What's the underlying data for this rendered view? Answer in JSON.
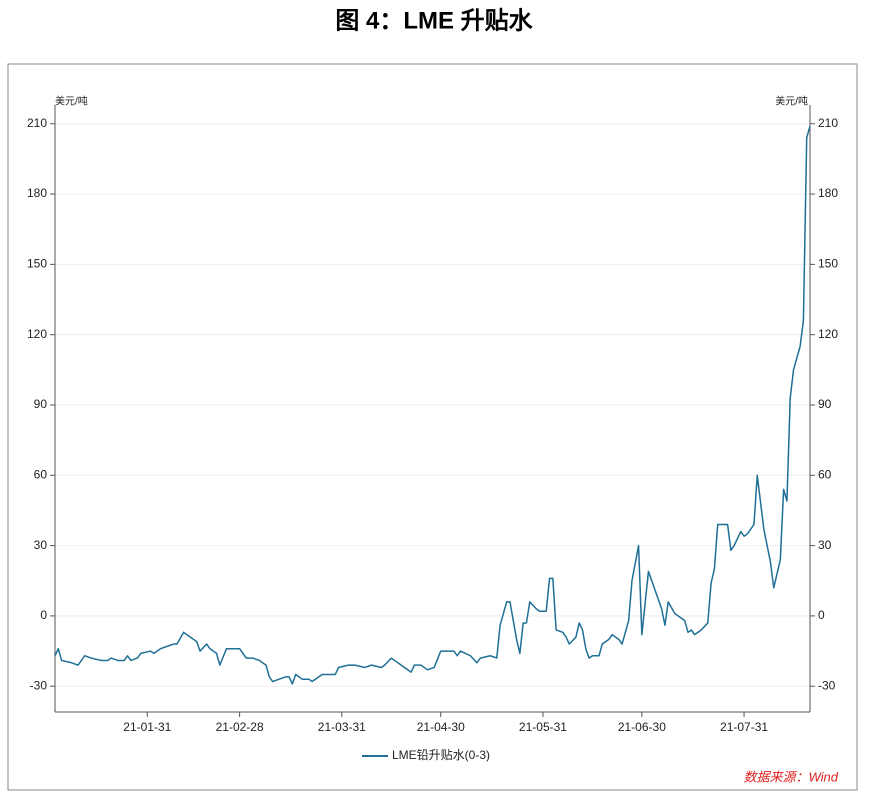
{
  "chart_data": {
    "type": "line",
    "title": "图 4：LME 升贴水",
    "ylabel": "美元/吨",
    "y2label": "美元/吨",
    "source": "数据来源：Wind",
    "x": [
      "21-01-03",
      "21-01-04",
      "21-01-05",
      "21-01-08",
      "21-01-10",
      "21-01-12",
      "21-01-14",
      "21-01-17",
      "21-01-19",
      "21-01-20",
      "21-01-22",
      "21-01-24",
      "21-01-25",
      "21-01-26",
      "21-01-28",
      "21-01-29",
      "21-02-01",
      "21-02-02",
      "21-02-04",
      "21-02-06",
      "21-02-08",
      "21-02-09",
      "21-02-11",
      "21-02-13",
      "21-02-15",
      "21-02-16",
      "21-02-18",
      "21-02-19",
      "21-02-21",
      "21-02-22",
      "21-02-24",
      "21-02-26",
      "21-02-28",
      "21-03-02",
      "21-03-04",
      "21-03-06",
      "21-03-08",
      "21-03-09",
      "21-03-10",
      "21-03-12",
      "21-03-14",
      "21-03-15",
      "21-03-16",
      "21-03-17",
      "21-03-19",
      "21-03-21",
      "21-03-22",
      "21-03-24",
      "21-03-25",
      "21-03-27",
      "21-03-29",
      "21-03-30",
      "21-04-02",
      "21-04-04",
      "21-04-07",
      "21-04-09",
      "21-04-12",
      "21-04-13",
      "21-04-15",
      "21-04-16",
      "21-04-18",
      "21-04-21",
      "21-04-22",
      "21-04-24",
      "21-04-26",
      "21-04-28",
      "21-04-30",
      "21-05-02",
      "21-05-04",
      "21-05-05",
      "21-05-06",
      "21-05-09",
      "21-05-11",
      "21-05-12",
      "21-05-15",
      "21-05-17",
      "21-05-18",
      "21-05-20",
      "21-05-21",
      "21-05-23",
      "21-05-24",
      "21-05-25",
      "21-05-26",
      "21-05-27",
      "21-05-29",
      "21-05-30",
      "21-06-01",
      "21-06-02",
      "21-06-03",
      "21-06-04",
      "21-06-06",
      "21-06-07",
      "21-06-08",
      "21-06-10",
      "21-06-11",
      "21-06-12",
      "21-06-13",
      "21-06-14",
      "21-06-15",
      "21-06-17",
      "21-06-18",
      "21-06-20",
      "21-06-21",
      "21-06-23",
      "21-06-24",
      "21-06-26",
      "21-06-27",
      "21-06-29",
      "21-06-30",
      "21-07-02",
      "21-07-04",
      "21-07-06",
      "21-07-07",
      "21-07-08",
      "21-07-10",
      "21-07-11",
      "21-07-13",
      "21-07-14",
      "21-07-15",
      "21-07-16",
      "21-07-18",
      "21-07-20",
      "21-07-21",
      "21-07-22",
      "21-07-23",
      "21-07-25",
      "21-07-26",
      "21-07-27",
      "21-07-28",
      "21-07-30",
      "21-07-31",
      "21-08-01",
      "21-08-02",
      "21-08-03",
      "21-08-04",
      "21-08-06",
      "21-08-08",
      "21-08-09",
      "21-08-11",
      "21-08-12",
      "21-08-13",
      "21-08-14",
      "21-08-15",
      "21-08-17",
      "21-08-18",
      "21-08-19",
      "21-08-20"
    ],
    "series": [
      {
        "name": "LME铅升贴水(0-3)",
        "color": "#1f6f96",
        "values": [
          -17,
          -14,
          -19,
          -20,
          -21,
          -17,
          -18,
          -19,
          -19,
          -18,
          -19,
          -19,
          -17,
          -19,
          -18,
          -16,
          -15,
          -16,
          -14,
          -13,
          -12,
          -12,
          -7,
          -9,
          -11,
          -15,
          -12,
          -14,
          -16,
          -21,
          -14,
          -14,
          -14,
          -18,
          -18,
          -19,
          -21,
          -26,
          -28,
          -27,
          -26,
          -26,
          -29,
          -25,
          -27,
          -27,
          -28,
          -26,
          -25,
          -25,
          -25,
          -22,
          -21,
          -21,
          -22,
          -21,
          -22,
          -21,
          -18,
          -19,
          -21,
          -24,
          -21,
          -21,
          -23,
          -22,
          -15,
          -15,
          -15,
          -17,
          -15,
          -17,
          -20,
          -18,
          -17,
          -18,
          -4,
          6,
          6,
          -10,
          -16,
          -3,
          -3,
          6,
          3,
          2,
          2,
          16,
          16,
          -6,
          -7,
          -9,
          -12,
          -9,
          -3,
          -6,
          -14,
          -18,
          -17,
          -17,
          -12,
          -10,
          -8,
          -10,
          -12,
          -2,
          15,
          30,
          -8,
          19,
          11,
          3,
          -4,
          6,
          1,
          0,
          -2,
          -7,
          -6,
          -8,
          -6,
          -3,
          14,
          20,
          39,
          39,
          39,
          28,
          30,
          36,
          34,
          35,
          37,
          39,
          60,
          37,
          23,
          12,
          24,
          54,
          49,
          93,
          105,
          115,
          126,
          204,
          209
        ]
      }
    ],
    "xlim": [
      "21-01-03",
      "21-08-20"
    ],
    "xticks": [
      "21-01-31",
      "21-02-28",
      "21-03-31",
      "21-04-30",
      "21-05-31",
      "21-06-30",
      "21-07-31"
    ],
    "ylim": [
      -41,
      218
    ],
    "yticks": [
      -30,
      0,
      30,
      60,
      90,
      120,
      150,
      180,
      210
    ],
    "y2lim": [
      -41,
      218
    ],
    "y2ticks": [
      -30,
      0,
      30,
      60,
      90,
      120,
      150,
      180,
      210
    ],
    "grid": true,
    "legend": "bottom"
  }
}
